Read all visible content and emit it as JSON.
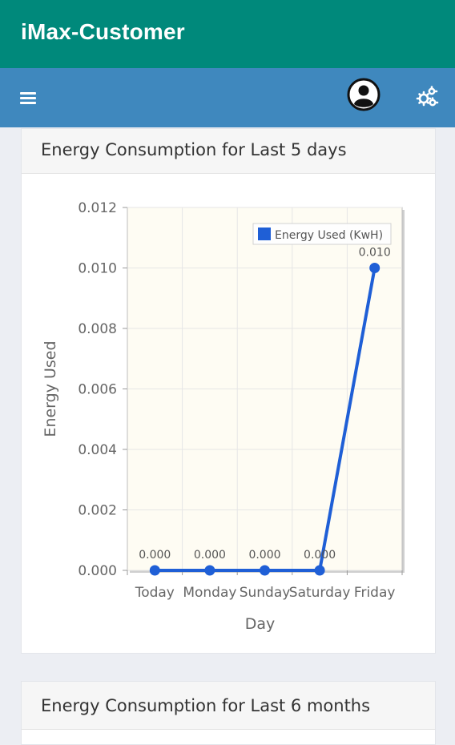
{
  "app": {
    "title": "iMax-Customer"
  },
  "toolbar": {
    "menu_icon": "hamburger-menu-icon",
    "profile_icon": "user-circle-icon",
    "settings_icon": "gears-icon"
  },
  "cards": [
    {
      "title": "Energy Consumption for Last 5 days"
    },
    {
      "title": "Energy Consumption for Last 6 months"
    }
  ],
  "chart_data": {
    "type": "line",
    "categories": [
      "Today",
      "Monday",
      "Sunday",
      "Saturday",
      "Friday"
    ],
    "series": [
      {
        "name": "Energy Used (KwH)",
        "values": [
          0.0,
          0.0,
          0.0,
          0.0,
          0.01
        ],
        "color": "#1f5fd6"
      }
    ],
    "data_labels": [
      "0.000",
      "0.000",
      "0.000",
      "0.000",
      "0.010"
    ],
    "xlabel": "Day",
    "ylabel": "Energy Used",
    "ylim": [
      0,
      0.012
    ],
    "yticks": [
      "0.000",
      "0.002",
      "0.004",
      "0.006",
      "0.008",
      "0.010",
      "0.012"
    ],
    "grid": true,
    "legend_position": "top-right",
    "plot_background": "#fefcf3"
  }
}
